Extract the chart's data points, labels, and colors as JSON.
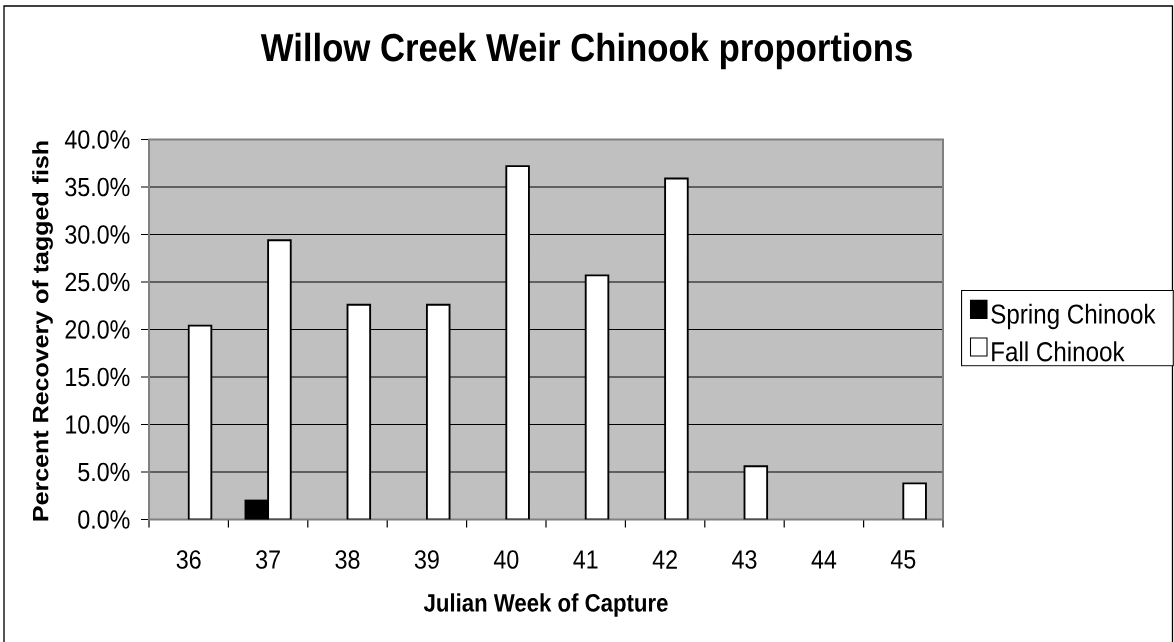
{
  "chart_data": {
    "type": "bar",
    "title": "Willow Creek Weir Chinook proportions",
    "xlabel": "Julian Week of Capture",
    "ylabel": "Percent Recovery of tagged fish",
    "categories": [
      "36",
      "37",
      "38",
      "39",
      "40",
      "41",
      "42",
      "43",
      "44",
      "45"
    ],
    "series": [
      {
        "name": "Spring Chinook",
        "color": "#000000",
        "values": [
          null,
          2.0,
          null,
          null,
          null,
          null,
          null,
          null,
          null,
          null
        ]
      },
      {
        "name": "Fall Chinook",
        "color": "#ffffff",
        "values": [
          20.4,
          29.4,
          22.6,
          22.6,
          37.2,
          25.7,
          35.9,
          5.6,
          null,
          3.8
        ]
      }
    ],
    "ylim": [
      0,
      40
    ],
    "yticks": [
      {
        "value": 0,
        "label": "0.0%"
      },
      {
        "value": 5,
        "label": "5.0%"
      },
      {
        "value": 10,
        "label": "10.0%"
      },
      {
        "value": 15,
        "label": "15.0%"
      },
      {
        "value": 20,
        "label": "20.0%"
      },
      {
        "value": 25,
        "label": "25.0%"
      },
      {
        "value": 30,
        "label": "30.0%"
      },
      {
        "value": 35,
        "label": "35.0%"
      },
      {
        "value": 40,
        "label": "40.0%"
      }
    ],
    "grid": "y",
    "legend": "right"
  }
}
